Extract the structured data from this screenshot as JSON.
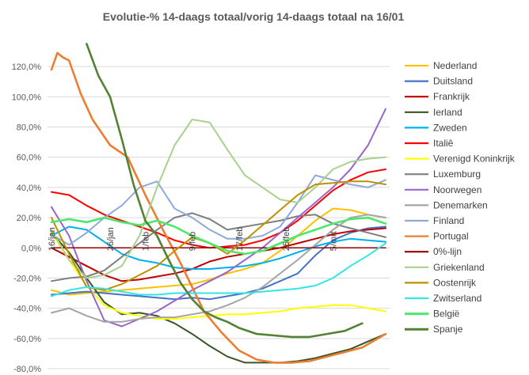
{
  "chart_data": {
    "type": "line",
    "title": "Evolutie-% 14-daags totaal/vorig 14-daags totaal na 16/01",
    "xlabel": "",
    "ylabel": "",
    "ylim": [
      -80,
      140
    ],
    "yticks": [
      -80,
      -60,
      -40,
      -20,
      0,
      20,
      40,
      60,
      80,
      100,
      120
    ],
    "y_tick_labels": [
      "-80,0%",
      "-60,0%",
      "-40,0%",
      "-20,0%",
      "0,0%",
      "20,0%",
      "40,0%",
      "60,0%",
      "80,0%",
      "100,0%",
      "120,0%"
    ],
    "x_tick_labels": [
      {
        "day": 0,
        "label": "16/jan"
      },
      {
        "day": 10,
        "label": "26/jan"
      },
      {
        "day": 16,
        "label": "1/feb"
      },
      {
        "day": 24,
        "label": "9/feb"
      },
      {
        "day": 32,
        "label": "17/feb"
      },
      {
        "day": 40,
        "label": "25/feb"
      },
      {
        "day": 48,
        "label": "5/mrt"
      }
    ],
    "x_range": [
      0,
      57
    ],
    "grid": "horizontal",
    "legend_position": "right",
    "series": [
      {
        "name": "Nederland",
        "color": "#FFC000",
        "x": [
          0,
          3,
          6,
          9,
          12,
          15,
          18,
          21,
          24,
          27,
          30,
          33,
          36,
          39,
          42,
          45,
          48,
          51,
          54,
          57
        ],
        "values": [
          -28,
          -31,
          -30,
          -29,
          -28,
          -27,
          -26,
          -25,
          -24,
          -21,
          -17,
          -14,
          -10,
          -2,
          8,
          18,
          26,
          25,
          22,
          20
        ]
      },
      {
        "name": "Duitsland",
        "color": "#4472C4",
        "x": [
          0,
          3,
          6,
          9,
          12,
          15,
          18,
          21,
          24,
          27,
          30,
          33,
          36,
          39,
          42,
          45,
          48,
          51,
          54,
          57
        ],
        "values": [
          -31,
          -30,
          -29,
          -30,
          -31,
          -32,
          -33,
          -34,
          -33,
          -34,
          -32,
          -30,
          -27,
          -22,
          -17,
          -5,
          5,
          10,
          13,
          14
        ]
      },
      {
        "name": "Frankrijk",
        "color": "#C00000",
        "x": [
          0,
          3,
          6,
          9,
          12,
          15,
          18,
          21,
          24,
          27,
          30,
          33,
          36,
          39,
          42,
          45,
          48,
          51,
          54,
          57
        ],
        "values": [
          0,
          -6,
          -12,
          -18,
          -22,
          -21,
          -19,
          -17,
          -14,
          -9,
          -6,
          -4,
          -2,
          0,
          3,
          6,
          9,
          11,
          12,
          13
        ]
      },
      {
        "name": "Ierland",
        "color": "#375623",
        "x": [
          0,
          3,
          6,
          9,
          12,
          15,
          18,
          21,
          24,
          27,
          30,
          33,
          36,
          39,
          42,
          45,
          48,
          51,
          54,
          57
        ],
        "values": [
          10,
          -3,
          -20,
          -36,
          -44,
          -43,
          -45,
          -50,
          -57,
          -65,
          -72,
          -76,
          -76,
          -76,
          -75,
          -73,
          -70,
          -67,
          -62,
          -57
        ]
      },
      {
        "name": "Zweden",
        "color": "#00B0F0",
        "x": [
          0,
          3,
          6,
          9,
          12,
          15,
          18,
          21,
          24,
          27,
          30,
          33,
          36,
          39,
          42,
          45,
          48,
          51,
          54,
          57
        ],
        "values": [
          8,
          14,
          12,
          4,
          -4,
          -8,
          -10,
          -13,
          -14,
          -14,
          -13,
          -12,
          -10,
          -7,
          -3,
          1,
          4,
          6,
          5,
          4
        ]
      },
      {
        "name": "Italiê",
        "color": "#FF0000",
        "x": [
          0,
          3,
          6,
          9,
          12,
          15,
          18,
          21,
          24,
          27,
          30,
          33,
          36,
          39,
          42,
          45,
          48,
          51,
          54,
          57
        ],
        "values": [
          37,
          35,
          28,
          22,
          18,
          14,
          10,
          5,
          2,
          0,
          1,
          2,
          5,
          10,
          18,
          28,
          38,
          45,
          50,
          52
        ]
      },
      {
        "name": "Verenigd Koninkrijk",
        "color": "#FFFF00",
        "x": [
          0,
          3,
          6,
          9,
          12,
          15,
          18,
          21,
          24,
          27,
          30,
          33,
          36,
          39,
          42,
          45,
          48,
          51,
          54,
          57
        ],
        "values": [
          10,
          -8,
          -25,
          -38,
          -43,
          -45,
          -47,
          -47,
          -46,
          -45,
          -44,
          -44,
          -43,
          -42,
          -40,
          -39,
          -38,
          -38,
          -40,
          -42
        ]
      },
      {
        "name": "Luxemburg",
        "color": "#7F7F7F",
        "x": [
          0,
          3,
          6,
          9,
          12,
          15,
          18,
          21,
          24,
          27,
          30,
          33,
          36,
          39,
          42,
          45,
          48,
          51,
          54,
          57
        ],
        "values": [
          -22,
          -20,
          -19,
          -15,
          -6,
          3,
          12,
          20,
          23,
          19,
          12,
          14,
          16,
          18,
          21,
          22,
          16,
          13,
          10,
          7
        ]
      },
      {
        "name": "Noorwegen",
        "color": "#9966CC",
        "x": [
          0,
          3,
          6,
          9,
          12,
          15,
          18,
          21,
          24,
          27,
          30,
          33,
          36,
          39,
          42,
          45,
          48,
          51,
          54,
          57
        ],
        "values": [
          27,
          8,
          -22,
          -48,
          -52,
          -47,
          -42,
          -35,
          -28,
          -22,
          -16,
          -8,
          0,
          10,
          20,
          30,
          40,
          52,
          68,
          92
        ]
      },
      {
        "name": "Denemarken",
        "color": "#A5A5A5",
        "x": [
          0,
          3,
          6,
          9,
          12,
          15,
          18,
          21,
          24,
          27,
          30,
          33,
          36,
          39,
          42,
          45,
          48,
          51,
          54,
          57
        ],
        "values": [
          -43,
          -40,
          -45,
          -49,
          -49,
          -47,
          -46,
          -46,
          -44,
          -42,
          -38,
          -33,
          -26,
          -17,
          -8,
          2,
          12,
          20,
          22,
          20
        ]
      },
      {
        "name": "Finland",
        "color": "#8EA9DB",
        "x": [
          0,
          3,
          6,
          9,
          12,
          15,
          18,
          21,
          24,
          27,
          30,
          33,
          36,
          39,
          42,
          45,
          48,
          51,
          54,
          57
        ],
        "values": [
          9,
          2,
          10,
          20,
          28,
          40,
          44,
          26,
          20,
          12,
          6,
          6,
          8,
          14,
          30,
          48,
          45,
          42,
          40,
          45
        ]
      },
      {
        "name": "Portugal",
        "color": "#ED7D31",
        "x": [
          0,
          1,
          2,
          3,
          5,
          7,
          10,
          13,
          16,
          19,
          22,
          24,
          26,
          29,
          32,
          35,
          38,
          41,
          44,
          47,
          50,
          53,
          57
        ],
        "values": [
          118,
          129,
          126,
          124,
          102,
          85,
          68,
          60,
          35,
          12,
          -10,
          -26,
          -42,
          -56,
          -68,
          -74,
          -76,
          -76,
          -75,
          -72,
          -69,
          -66,
          -57
        ]
      },
      {
        "name": "0%-lijn",
        "color": "#990000",
        "x": [
          0,
          57
        ],
        "values": [
          0,
          0
        ]
      },
      {
        "name": "Griekenland",
        "color": "#A9D18E",
        "x": [
          0,
          3,
          6,
          9,
          12,
          15,
          18,
          21,
          24,
          27,
          30,
          33,
          36,
          39,
          42,
          45,
          48,
          51,
          54,
          57
        ],
        "values": [
          12,
          -8,
          -20,
          -18,
          -12,
          8,
          40,
          68,
          85,
          83,
          65,
          48,
          40,
          32,
          30,
          40,
          52,
          57,
          59,
          60
        ]
      },
      {
        "name": "Oostenrijk",
        "color": "#BF9000",
        "x": [
          0,
          3,
          6,
          9,
          12,
          15,
          18,
          21,
          24,
          27,
          30,
          33,
          36,
          39,
          42,
          45,
          48,
          51,
          54,
          57
        ],
        "values": [
          20,
          -4,
          -26,
          -28,
          -24,
          -18,
          -12,
          -2,
          7,
          3,
          -4,
          5,
          15,
          25,
          35,
          42,
          43,
          44,
          44,
          42
        ]
      },
      {
        "name": "Zwitserland",
        "color": "#33E5E5",
        "x": [
          0,
          3,
          6,
          9,
          12,
          15,
          18,
          21,
          24,
          27,
          30,
          33,
          36,
          39,
          42,
          45,
          48,
          51,
          54,
          57
        ],
        "values": [
          -32,
          -28,
          -26,
          -27,
          -29,
          -31,
          -31,
          -30,
          -30,
          -30,
          -30,
          -30,
          -29,
          -28,
          -27,
          -25,
          -20,
          -12,
          -5,
          3
        ]
      },
      {
        "name": "België",
        "color": "#4CE86C",
        "x": [
          0,
          3,
          6,
          9,
          12,
          15,
          18,
          21,
          24,
          27,
          30,
          33,
          36,
          39,
          42,
          45,
          48,
          51,
          54,
          57
        ],
        "values": [
          17,
          19,
          17,
          20,
          17,
          15,
          18,
          14,
          8,
          3,
          -2,
          -4,
          -2,
          3,
          8,
          12,
          16,
          19,
          20,
          16
        ]
      },
      {
        "name": "Spanje",
        "color": "#548235",
        "x": [
          6,
          8,
          10,
          12,
          14,
          16,
          18,
          20,
          22,
          24,
          26,
          28,
          30,
          32,
          35,
          38,
          41,
          44,
          47,
          50,
          53
        ],
        "values": [
          135,
          114,
          100,
          72,
          42,
          18,
          8,
          -8,
          -23,
          -34,
          -42,
          -46,
          -49,
          -53,
          -57,
          -58,
          -59,
          -59,
          -57,
          -55,
          -50
        ]
      }
    ]
  }
}
